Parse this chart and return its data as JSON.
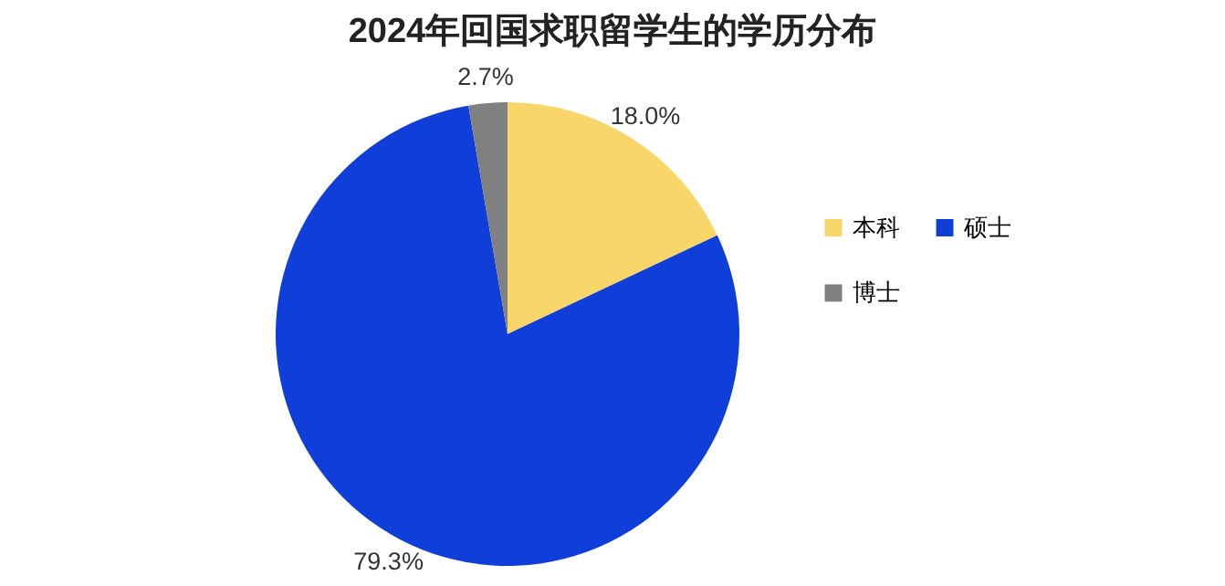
{
  "chart_data": {
    "type": "pie",
    "title": "2024年回国求职留学生的学历分布",
    "categories": [
      "本科",
      "硕士",
      "博士"
    ],
    "values": [
      18.0,
      79.3,
      2.7
    ],
    "colors": [
      "#f9d66a",
      "#0f3fd8",
      "#808080"
    ],
    "value_labels": [
      "18.0%",
      "79.3%",
      "2.7%"
    ],
    "legend": "right"
  }
}
